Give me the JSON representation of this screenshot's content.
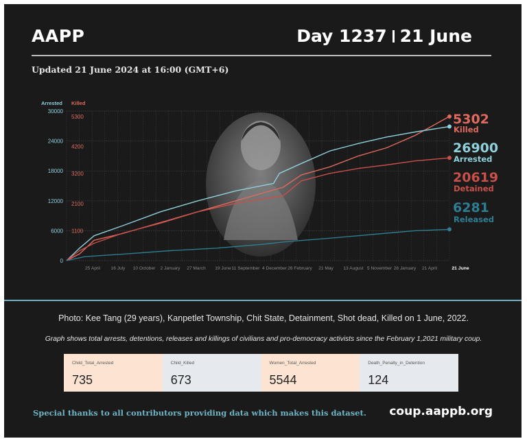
{
  "header": {
    "brand": "AAPP",
    "day_label": "Day 1237",
    "date_label": "21 June",
    "updated": "Updated 21 June 2024 at 16:00 (GMT+6)"
  },
  "captions": {
    "photo": "Photo: Kee Tang (29 years), Kanpetlet Township, Chit State, Detainment, Shot dead, Killed on 1 June, 2022.",
    "graph": "Graph shows total arrests, detentions, releases and killings of civilians and pro-democracy activists since the February 1,2021 military coup."
  },
  "stats": [
    {
      "label": "Child_Total_Arrested",
      "value": "735",
      "color": "#fde4d2"
    },
    {
      "label": "Child_Killed",
      "value": "673",
      "color": "#e6e9ee"
    },
    {
      "label": "Women_Total_Arrested",
      "value": "5544",
      "color": "#fde4d2"
    },
    {
      "label": "Death_Penalty_in_Detention",
      "value": "124",
      "color": "#e6e9ee"
    }
  ],
  "footer": {
    "thanks": "Special thanks to all contributors providing data which makes this dataset.",
    "site": "coup.aappb.org"
  },
  "chart_data": {
    "type": "line",
    "left_axis": {
      "label": "Arrested",
      "ticks": [
        0,
        6000,
        12000,
        18000,
        24000,
        30000
      ],
      "tick_labels": [
        "0",
        "6000",
        "12000",
        "18000",
        "24000",
        "30000"
      ],
      "range": [
        0,
        30000
      ],
      "color": "#8fd0dc"
    },
    "right_axis": {
      "label": "Killed",
      "ticks": [
        0,
        1100,
        2100,
        3200,
        4200,
        5300
      ],
      "tick_labels": [
        "0",
        "1100",
        "2100",
        "3200",
        "4200",
        "5300"
      ],
      "range": [
        0,
        5500
      ],
      "color": "#e06a5e"
    },
    "x_tick_labels": [
      "25 April",
      "16 July",
      "10 October",
      "2 January",
      "27 March",
      "19 June",
      "11 September",
      "4 December",
      "26 February",
      "21 May",
      "13 August",
      "5 November",
      "28 January",
      "21 April",
      "21 June"
    ],
    "x_range": [
      "2021-02-01",
      "2024-06-21"
    ],
    "grid": true,
    "series": [
      {
        "name": "Killed",
        "axis": "right",
        "color": "#e06a5e",
        "end_value": "5302",
        "points": [
          [
            "2021-02-01",
            0
          ],
          [
            "2021-03-15",
            250
          ],
          [
            "2021-05-01",
            750
          ],
          [
            "2021-08-01",
            1000
          ],
          [
            "2021-12-01",
            1400
          ],
          [
            "2022-04-01",
            1800
          ],
          [
            "2022-08-01",
            2200
          ],
          [
            "2023-01-01",
            2700
          ],
          [
            "2023-03-01",
            3150
          ],
          [
            "2023-06-01",
            3450
          ],
          [
            "2023-09-01",
            3850
          ],
          [
            "2023-12-01",
            4150
          ],
          [
            "2024-03-01",
            4600
          ],
          [
            "2024-06-21",
            5302
          ]
        ]
      },
      {
        "name": "Arrested",
        "axis": "left",
        "color": "#8fd0dc",
        "end_value": "26900",
        "points": [
          [
            "2021-02-01",
            0
          ],
          [
            "2021-03-15",
            2500
          ],
          [
            "2021-05-01",
            5000
          ],
          [
            "2021-08-01",
            7000
          ],
          [
            "2021-12-01",
            9800
          ],
          [
            "2022-04-01",
            12000
          ],
          [
            "2022-08-01",
            14000
          ],
          [
            "2022-12-01",
            15500
          ],
          [
            "2022-12-20",
            17500
          ],
          [
            "2023-03-01",
            19500
          ],
          [
            "2023-06-01",
            22000
          ],
          [
            "2023-09-01",
            23500
          ],
          [
            "2023-12-01",
            24800
          ],
          [
            "2024-03-01",
            25800
          ],
          [
            "2024-06-21",
            26900
          ]
        ]
      },
      {
        "name": "Detained",
        "axis": "left",
        "color": "#c8504a",
        "end_value": "20619",
        "points": [
          [
            "2021-02-01",
            0
          ],
          [
            "2021-03-15",
            2000
          ],
          [
            "2021-05-01",
            3500
          ],
          [
            "2021-08-01",
            5500
          ],
          [
            "2021-12-01",
            7500
          ],
          [
            "2022-04-01",
            9800
          ],
          [
            "2022-08-01",
            11500
          ],
          [
            "2023-01-01",
            13000
          ],
          [
            "2023-03-01",
            16000
          ],
          [
            "2023-06-01",
            17500
          ],
          [
            "2023-09-01",
            18500
          ],
          [
            "2023-12-01",
            19200
          ],
          [
            "2024-03-01",
            20000
          ],
          [
            "2024-06-21",
            20619
          ]
        ]
      },
      {
        "name": "Released",
        "axis": "left",
        "color": "#2f7d92",
        "end_value": "6281",
        "points": [
          [
            "2021-02-01",
            0
          ],
          [
            "2021-04-01",
            800
          ],
          [
            "2021-08-01",
            1300
          ],
          [
            "2022-01-01",
            2000
          ],
          [
            "2022-06-01",
            2500
          ],
          [
            "2022-11-01",
            3300
          ],
          [
            "2023-01-10",
            3800
          ],
          [
            "2023-06-01",
            4500
          ],
          [
            "2023-12-01",
            5500
          ],
          [
            "2024-03-01",
            6000
          ],
          [
            "2024-06-21",
            6281
          ]
        ]
      }
    ]
  }
}
